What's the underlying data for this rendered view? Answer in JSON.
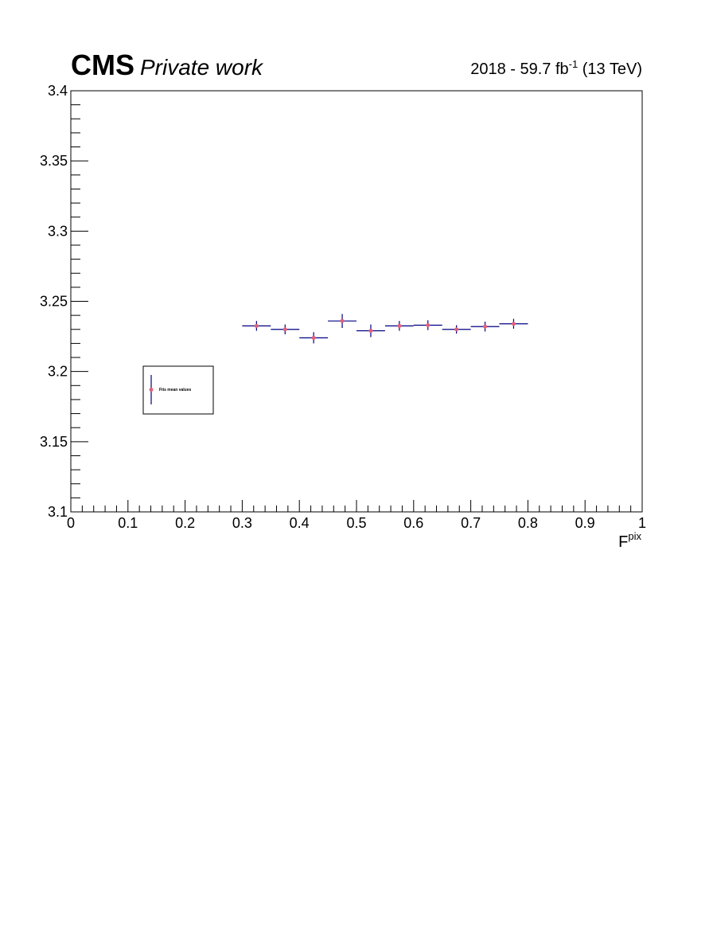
{
  "header": {
    "experiment": "CMS",
    "status": "Private work",
    "lumi_prefix": "2018 - 59.7 fb",
    "lumi_sup": "-1",
    "lumi_suffix": " (13 TeV)"
  },
  "chart_data": {
    "type": "scatter",
    "xlabel_main": "F",
    "xlabel_sup": "pix",
    "ylabel": "",
    "xlim": [
      0,
      1
    ],
    "ylim": [
      3.1,
      3.4
    ],
    "x_ticks": [
      "0",
      "0.1",
      "0.2",
      "0.3",
      "0.4",
      "0.5",
      "0.6",
      "0.7",
      "0.8",
      "0.9",
      "1"
    ],
    "y_ticks": [
      "3.1",
      "3.15",
      "3.2",
      "3.25",
      "3.3",
      "3.35",
      "3.4"
    ],
    "legend": {
      "label": "Fits mean values",
      "position": "left-middle"
    },
    "series": [
      {
        "name": "Fits mean values",
        "marker_color": "#e0607e",
        "errorbar_color": "#000080",
        "points": [
          {
            "x": 0.325,
            "y": 3.2325,
            "xerr": 0.025,
            "yerr": 0.0035
          },
          {
            "x": 0.375,
            "y": 3.23,
            "xerr": 0.025,
            "yerr": 0.0035
          },
          {
            "x": 0.425,
            "y": 3.224,
            "xerr": 0.025,
            "yerr": 0.004
          },
          {
            "x": 0.475,
            "y": 3.236,
            "xerr": 0.025,
            "yerr": 0.005
          },
          {
            "x": 0.525,
            "y": 3.229,
            "xerr": 0.025,
            "yerr": 0.0045
          },
          {
            "x": 0.575,
            "y": 3.2325,
            "xerr": 0.025,
            "yerr": 0.0035
          },
          {
            "x": 0.625,
            "y": 3.233,
            "xerr": 0.025,
            "yerr": 0.0035
          },
          {
            "x": 0.675,
            "y": 3.23,
            "xerr": 0.025,
            "yerr": 0.003
          },
          {
            "x": 0.725,
            "y": 3.232,
            "xerr": 0.025,
            "yerr": 0.0035
          },
          {
            "x": 0.775,
            "y": 3.234,
            "xerr": 0.025,
            "yerr": 0.0035
          }
        ]
      }
    ]
  }
}
